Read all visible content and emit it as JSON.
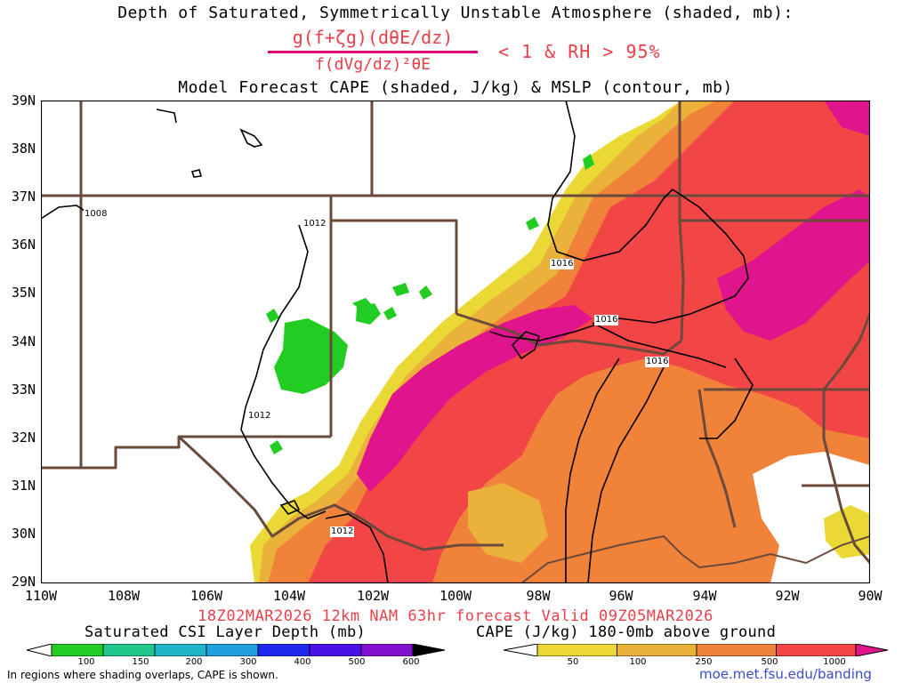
{
  "header": {
    "title_line1": "Depth of Saturated, Symmetrically Unstable Atmosphere (shaded, mb):",
    "formula_numerator": "g(f+ζg)(dθE/dz)",
    "formula_denominator": "f(dVg/dz)²θE",
    "formula_condition": "< 1 & RH > 95%",
    "title_line3": "Model Forecast CAPE (shaded, J/kg) & MSLP (contour, mb)"
  },
  "map": {
    "lat_labels": [
      "39N",
      "38N",
      "37N",
      "36N",
      "35N",
      "34N",
      "33N",
      "32N",
      "31N",
      "30N",
      "29N"
    ],
    "lon_labels": [
      "110W",
      "108W",
      "106W",
      "104W",
      "102W",
      "100W",
      "98W",
      "96W",
      "94W",
      "92W",
      "90W"
    ],
    "lat_range": [
      29,
      39
    ],
    "lon_range": [
      -110,
      -90
    ],
    "contour_labels": [
      {
        "text": "1008",
        "lon": -108.8,
        "lat": 36.6
      },
      {
        "text": "1012",
        "lon": -102.6,
        "lat": 36.4
      },
      {
        "text": "1016",
        "lon": -98.2,
        "lat": 35.6
      },
      {
        "text": "1016",
        "lon": -96.3,
        "lat": 34.4
      },
      {
        "text": "1016",
        "lon": -94.9,
        "lat": 33.9
      },
      {
        "text": "1012",
        "lon": -104.5,
        "lat": 32.2
      },
      {
        "text": "1012",
        "lon": -102.3,
        "lat": 30.0
      }
    ],
    "colors": {
      "borders": "#6b4a3c",
      "contour": "#000000",
      "csi_green": "#22cc22",
      "cape_yellow": "#ead935",
      "cape_lorange": "#eab23a",
      "cape_orange": "#f0823a",
      "cape_red": "#f24545",
      "cape_magenta": "#e0148c"
    }
  },
  "valid_line": "18Z02MAR2026 12km NAM 63hr forecast Valid 09Z05MAR2026",
  "colorbars": {
    "csi": {
      "title": "Saturated CSI Layer Depth (mb)",
      "ticks": [
        "100",
        "150",
        "200",
        "300",
        "400",
        "500",
        "600"
      ],
      "colors": [
        "#ffffff",
        "#22cc22",
        "#20c88c",
        "#20b4c8",
        "#20a0dc",
        "#2028f0",
        "#4a10e8",
        "#8010d0",
        "#000000"
      ]
    },
    "cape": {
      "title": "CAPE (J/kg) 180-0mb above ground",
      "ticks": [
        "50",
        "100",
        "250",
        "500",
        "1000"
      ],
      "colors": [
        "#ffffff",
        "#ead935",
        "#eab23a",
        "#f0823a",
        "#f24545",
        "#e0148c"
      ]
    }
  },
  "footer": {
    "note": "In regions where shading overlaps, CAPE is shown.",
    "url": "moe.met.fsu.edu/banding"
  }
}
